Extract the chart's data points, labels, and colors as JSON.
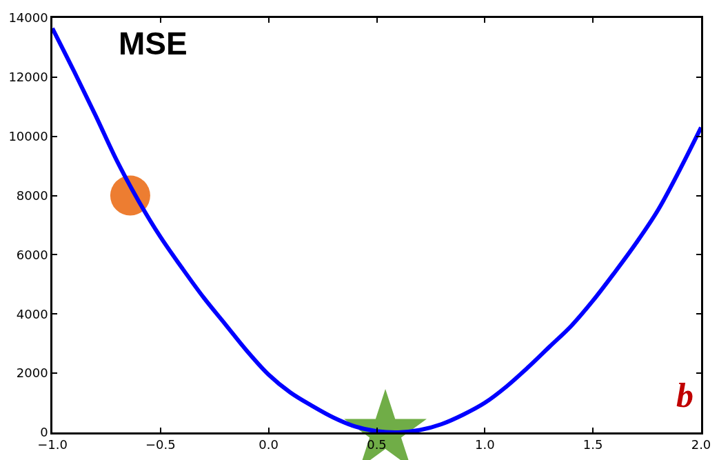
{
  "chart_data": {
    "type": "line",
    "annotations": [
      "MSE",
      "b"
    ],
    "xlim": [
      -1.0,
      2.0
    ],
    "xticks": [
      {
        "value": -1.0,
        "label": "−1.0"
      },
      {
        "value": -0.5,
        "label": "−0.5"
      },
      {
        "value": 0.0,
        "label": "0.0"
      },
      {
        "value": 0.5,
        "label": "0.5"
      },
      {
        "value": 1.0,
        "label": "1.0"
      },
      {
        "value": 1.5,
        "label": "1.5"
      },
      {
        "value": 2.0,
        "label": "2.0"
      }
    ],
    "ylim": [
      0,
      14000
    ],
    "yticks": [
      0,
      2000,
      4000,
      6000,
      8000,
      10000,
      12000,
      14000
    ],
    "series": [
      {
        "color": "#0000ff",
        "marker": "none",
        "x": [
          -1.0,
          -0.9,
          -0.8,
          -0.7,
          -0.6,
          -0.5,
          -0.4,
          -0.3,
          -0.2,
          -0.1,
          0.0,
          0.1,
          0.2,
          0.3,
          0.4,
          0.5,
          0.6,
          0.7,
          0.8,
          0.9,
          1.0,
          1.1,
          1.2,
          1.3,
          1.4,
          1.5,
          1.6,
          1.7,
          1.8,
          1.9,
          2.0
        ],
        "values": [
          13650,
          12200,
          10700,
          9150,
          7800,
          6600,
          5550,
          4550,
          3650,
          2750,
          1950,
          1350,
          900,
          500,
          200,
          40,
          0,
          80,
          280,
          600,
          1000,
          1550,
          2200,
          2900,
          3600,
          4450,
          5400,
          6400,
          7500,
          8850,
          10300
        ]
      },
      {
        "type": "scatter",
        "color": "#ed7d31",
        "marker": "circle",
        "x": [
          -0.64
        ],
        "values": [
          8000
        ]
      },
      {
        "type": "scatter",
        "color": "#70ad47",
        "marker": "star",
        "x": [
          0.54
        ],
        "values": [
          0
        ]
      }
    ]
  }
}
